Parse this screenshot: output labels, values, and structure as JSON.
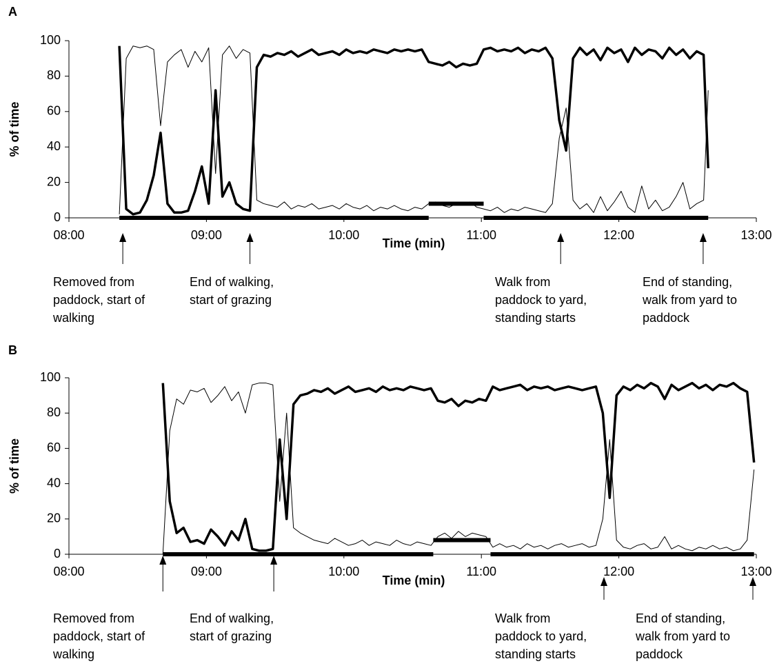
{
  "chart_data": [
    {
      "type": "line",
      "label": "A",
      "ylabel": "% of time",
      "xlabel": "Time (min)",
      "xlim": [
        480,
        780
      ],
      "ylim": [
        0,
        100
      ],
      "xticks": [
        {
          "value": 480,
          "label": "08:00"
        },
        {
          "value": 540,
          "label": "09:00"
        },
        {
          "value": 600,
          "label": "10:00"
        },
        {
          "value": 660,
          "label": "11:00"
        },
        {
          "value": 720,
          "label": "12:00"
        },
        {
          "value": 780,
          "label": "13:00"
        }
      ],
      "yticks": [
        0,
        20,
        40,
        60,
        80,
        100
      ],
      "x": [
        502,
        505,
        508,
        511,
        514,
        517,
        520,
        523,
        526,
        529,
        532,
        535,
        538,
        541,
        544,
        547,
        550,
        553,
        556,
        559,
        562,
        565,
        568,
        571,
        574,
        577,
        580,
        583,
        586,
        589,
        592,
        595,
        598,
        601,
        604,
        607,
        610,
        613,
        616,
        619,
        622,
        625,
        628,
        631,
        634,
        637,
        640,
        643,
        646,
        649,
        652,
        655,
        658,
        661,
        664,
        667,
        670,
        673,
        676,
        679,
        682,
        685,
        688,
        691,
        694,
        697,
        700,
        703,
        706,
        709,
        712,
        715,
        718,
        721,
        724,
        727,
        730,
        733,
        736,
        739,
        742,
        745,
        748,
        751,
        754,
        757,
        759
      ],
      "series": [
        {
          "color": "#000000",
          "width": 3.5,
          "values": [
            97,
            5,
            2,
            3,
            10,
            24,
            48,
            8,
            3,
            3,
            4,
            15,
            29,
            8,
            72,
            12,
            20,
            8,
            5,
            4,
            85,
            92,
            91,
            93,
            92,
            94,
            91,
            93,
            95,
            92,
            93,
            94,
            92,
            95,
            93,
            94,
            93,
            95,
            94,
            93,
            95,
            94,
            95,
            94,
            95,
            88,
            87,
            86,
            88,
            85,
            87,
            86,
            87,
            95,
            96,
            94,
            95,
            94,
            96,
            93,
            95,
            94,
            96,
            90,
            55,
            38,
            90,
            96,
            92,
            95,
            89,
            96,
            93,
            95,
            88,
            96,
            92,
            95,
            94,
            90,
            96,
            92,
            95,
            90,
            94,
            92,
            28
          ]
        },
        {
          "color": "#000000",
          "width": 1,
          "values": [
            2,
            90,
            97,
            96,
            97,
            95,
            52,
            88,
            92,
            95,
            85,
            94,
            88,
            96,
            25,
            92,
            97,
            90,
            95,
            93,
            10,
            8,
            7,
            6,
            9,
            5,
            7,
            6,
            8,
            5,
            6,
            7,
            5,
            8,
            6,
            5,
            7,
            4,
            6,
            5,
            7,
            5,
            4,
            6,
            5,
            8,
            9,
            7,
            6,
            8,
            7,
            9,
            6,
            5,
            4,
            6,
            3,
            5,
            4,
            6,
            5,
            4,
            3,
            8,
            45,
            62,
            10,
            5,
            8,
            3,
            12,
            4,
            9,
            15,
            6,
            3,
            18,
            5,
            10,
            4,
            6,
            12,
            20,
            5,
            8,
            10,
            72
          ]
        }
      ],
      "segments": [
        {
          "x": [
            502,
            637
          ],
          "y": 0
        },
        {
          "x": [
            637,
            661
          ],
          "y": 8
        },
        {
          "x": [
            661,
            759
          ],
          "y": 0
        }
      ],
      "annotations": [
        {
          "x": 503.5,
          "lines": [
            "Removed from",
            "paddock, start of",
            "walking"
          ]
        },
        {
          "x": 559,
          "lines": [
            "End of walking,",
            "start of grazing"
          ]
        },
        {
          "x": 694.6,
          "lines": [
            "Walk from",
            "paddock to yard,",
            "standing starts"
          ]
        },
        {
          "x": 756.8,
          "lines": [
            "End of standing,",
            "walk from yard to",
            "paddock"
          ]
        }
      ]
    },
    {
      "type": "line",
      "label": "B",
      "ylabel": "% of time",
      "xlabel": "Time (min)",
      "xlim": [
        480,
        780
      ],
      "ylim": [
        0,
        100
      ],
      "xticks": [
        {
          "value": 480,
          "label": "08:00"
        },
        {
          "value": 540,
          "label": "09:00"
        },
        {
          "value": 600,
          "label": "10:00"
        },
        {
          "value": 660,
          "label": "11:00"
        },
        {
          "value": 720,
          "label": "12:00"
        },
        {
          "value": 780,
          "label": "13:00"
        }
      ],
      "yticks": [
        0,
        20,
        40,
        60,
        80,
        100
      ],
      "x": [
        521,
        524,
        527,
        530,
        533,
        536,
        539,
        542,
        545,
        548,
        551,
        554,
        557,
        560,
        563,
        566,
        569,
        572,
        575,
        578,
        581,
        584,
        587,
        590,
        593,
        596,
        599,
        602,
        605,
        608,
        611,
        614,
        617,
        620,
        623,
        626,
        629,
        632,
        635,
        638,
        641,
        644,
        647,
        650,
        653,
        656,
        659,
        662,
        665,
        668,
        671,
        674,
        677,
        680,
        683,
        686,
        689,
        692,
        695,
        698,
        701,
        704,
        707,
        710,
        713,
        716,
        719,
        722,
        725,
        728,
        731,
        734,
        737,
        740,
        743,
        746,
        749,
        752,
        755,
        758,
        761,
        764,
        767,
        770,
        773,
        776,
        779
      ],
      "series": [
        {
          "color": "#000000",
          "width": 3.5,
          "values": [
            97,
            30,
            12,
            15,
            7,
            8,
            6,
            14,
            10,
            5,
            13,
            8,
            20,
            3,
            2,
            2,
            3,
            65,
            20,
            85,
            90,
            91,
            93,
            92,
            94,
            91,
            93,
            95,
            92,
            93,
            94,
            92,
            95,
            93,
            94,
            93,
            95,
            94,
            93,
            94,
            87,
            86,
            88,
            84,
            87,
            86,
            88,
            87,
            95,
            93,
            94,
            95,
            96,
            93,
            95,
            94,
            95,
            93,
            94,
            95,
            94,
            93,
            94,
            95,
            80,
            32,
            90,
            95,
            93,
            96,
            94,
            97,
            95,
            88,
            96,
            93,
            95,
            97,
            94,
            96,
            93,
            96,
            95,
            97,
            94,
            92,
            52
          ]
        },
        {
          "color": "#000000",
          "width": 1,
          "values": [
            0,
            70,
            88,
            85,
            93,
            92,
            94,
            86,
            90,
            95,
            87,
            92,
            80,
            96,
            97,
            97,
            96,
            30,
            80,
            15,
            12,
            10,
            8,
            7,
            6,
            9,
            7,
            5,
            6,
            8,
            5,
            7,
            6,
            5,
            8,
            6,
            5,
            7,
            6,
            5,
            10,
            12,
            9,
            13,
            10,
            12,
            11,
            10,
            4,
            6,
            4,
            5,
            3,
            6,
            4,
            5,
            3,
            5,
            6,
            4,
            5,
            6,
            4,
            5,
            20,
            65,
            8,
            4,
            3,
            5,
            6,
            3,
            4,
            10,
            3,
            5,
            3,
            2,
            4,
            3,
            5,
            3,
            4,
            2,
            3,
            8,
            48
          ]
        }
      ],
      "segments": [
        {
          "x": [
            521,
            639
          ],
          "y": 0
        },
        {
          "x": [
            639,
            664
          ],
          "y": 8
        },
        {
          "x": [
            664,
            779
          ],
          "y": 0
        }
      ],
      "annotations": [
        {
          "x": 521,
          "lines": [
            "Removed from",
            "paddock, start of",
            "walking"
          ]
        },
        {
          "x": 569.4,
          "lines": [
            "End of walking,",
            "start of grazing"
          ]
        },
        {
          "x": 713.5,
          "lines": [
            "Walk from",
            "paddock to yard,",
            "standing starts"
          ]
        },
        {
          "x": 778.5,
          "lines": [
            "End of standing,",
            "walk from yard to",
            "paddock"
          ]
        }
      ]
    }
  ]
}
